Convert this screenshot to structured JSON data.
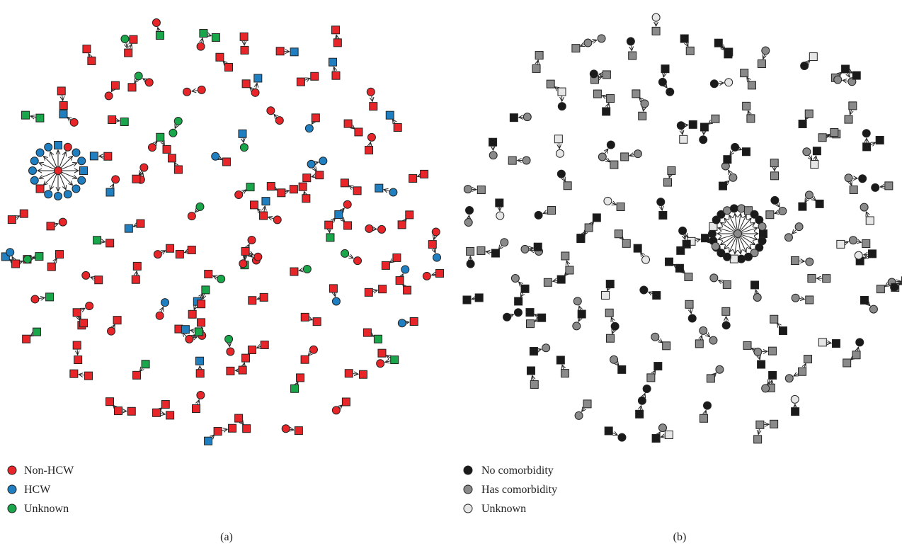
{
  "panels": [
    {
      "id": "a",
      "label": "(a)",
      "legend": [
        {
          "label": "Non-HCW",
          "color": "#e8262a"
        },
        {
          "label": "HCW",
          "color": "#1f7fc1"
        },
        {
          "label": "Unknown",
          "color": "#1aa64a"
        }
      ]
    },
    {
      "id": "b",
      "label": "(b)",
      "legend": [
        {
          "label": "No comorbidity",
          "color": "#1a1a1a"
        },
        {
          "label": "Has comorbidity",
          "color": "#8a8a8a"
        },
        {
          "label": "Unknown",
          "color": "#e6e6e6"
        }
      ]
    }
  ]
}
